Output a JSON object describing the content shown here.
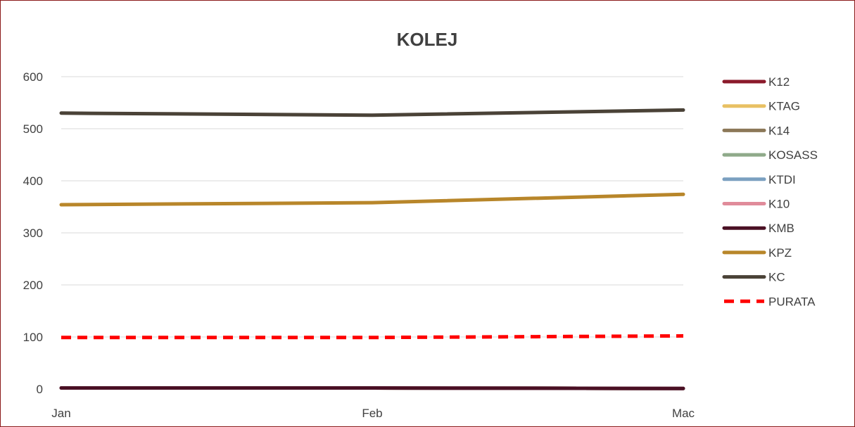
{
  "chart_data": {
    "type": "line",
    "title": "KOLEJ",
    "xlabel": "",
    "ylabel": "",
    "categories": [
      "Jan",
      "Feb",
      "Mac"
    ],
    "ylim": [
      0,
      600
    ],
    "yticks": [
      0,
      100,
      200,
      300,
      400,
      500,
      600
    ],
    "grid": true,
    "legend_position": "right",
    "series": [
      {
        "name": "K12",
        "values": [
          2,
          2,
          1
        ],
        "color": "#8B1A2B",
        "dash": false
      },
      {
        "name": "KTAG",
        "values": [
          2,
          2,
          1
        ],
        "color": "#E8C063",
        "dash": false
      },
      {
        "name": "K14",
        "values": [
          2,
          2,
          1
        ],
        "color": "#8C7858",
        "dash": false
      },
      {
        "name": "KOSASS",
        "values": [
          2,
          2,
          1
        ],
        "color": "#8FAA8A",
        "dash": false
      },
      {
        "name": "KTDI",
        "values": [
          2,
          2,
          1
        ],
        "color": "#7BA0C0",
        "dash": false
      },
      {
        "name": "K10",
        "values": [
          2,
          2,
          1
        ],
        "color": "#E08B9A",
        "dash": false
      },
      {
        "name": "KMB",
        "values": [
          2,
          2,
          1
        ],
        "color": "#4A1024",
        "dash": false
      },
      {
        "name": "KPZ",
        "values": [
          354,
          358,
          374
        ],
        "color": "#B8862A",
        "dash": false
      },
      {
        "name": "KC",
        "values": [
          530,
          526,
          536
        ],
        "color": "#4A4237",
        "dash": false
      },
      {
        "name": "PURATA",
        "values": [
          99,
          99,
          102
        ],
        "color": "#FF0000",
        "dash": true
      }
    ]
  }
}
